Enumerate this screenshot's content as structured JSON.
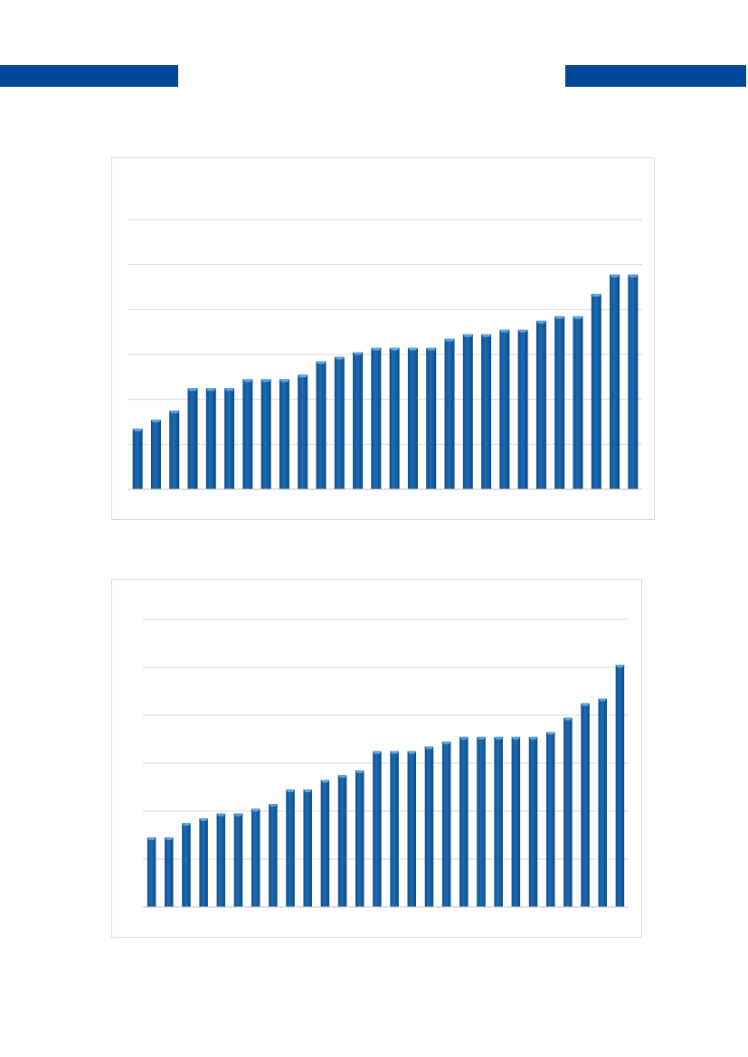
{
  "colors": {
    "header": "#00469a",
    "bar": "#1f6cb3",
    "bar_top": "#5fa2e0",
    "gridline": "#d9d9d9",
    "frame_border": "#d9d9d9"
  },
  "chart_data": [
    {
      "type": "bar",
      "grid": true,
      "ylim": [
        0,
        6
      ],
      "yticks": [
        0,
        1,
        2,
        3,
        4,
        5,
        6
      ],
      "values": [
        1.35,
        1.55,
        1.75,
        2.25,
        2.25,
        2.25,
        2.45,
        2.45,
        2.45,
        2.55,
        2.85,
        2.95,
        3.05,
        3.15,
        3.15,
        3.15,
        3.15,
        3.35,
        3.45,
        3.45,
        3.55,
        3.55,
        3.75,
        3.85,
        3.85,
        4.35,
        4.78,
        4.78
      ]
    },
    {
      "type": "bar",
      "grid": true,
      "ylim": [
        0,
        6
      ],
      "yticks": [
        0,
        1,
        2,
        3,
        4,
        5,
        6
      ],
      "values": [
        1.45,
        1.45,
        1.75,
        1.85,
        1.95,
        1.95,
        2.05,
        2.15,
        2.45,
        2.45,
        2.65,
        2.75,
        2.85,
        3.25,
        3.25,
        3.25,
        3.35,
        3.45,
        3.55,
        3.55,
        3.55,
        3.55,
        3.55,
        3.65,
        3.95,
        4.25,
        4.35,
        5.05
      ]
    }
  ]
}
